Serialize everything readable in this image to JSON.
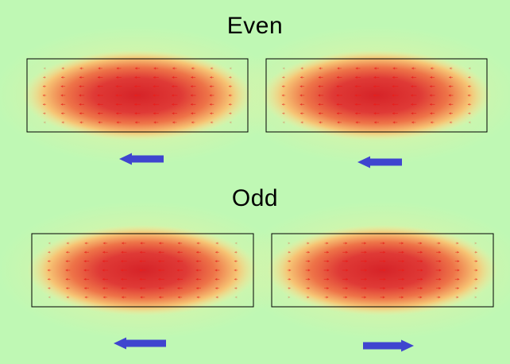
{
  "labels": {
    "even": "Even",
    "odd": "Odd"
  },
  "colors": {
    "background": "#bff8b4",
    "field_core": "#d8282c",
    "field_mid": "#f07a46",
    "field_edge": "#f4e08a",
    "field_arrow": "#e8201c",
    "power_arrow": "#3f45cf",
    "outline": "#000000"
  },
  "modes": [
    {
      "name": "even",
      "waveguides": [
        {
          "field_direction": "left",
          "power_flow": "left"
        },
        {
          "field_direction": "left",
          "power_flow": "left"
        }
      ]
    },
    {
      "name": "odd",
      "waveguides": [
        {
          "field_direction": "left",
          "power_flow": "left"
        },
        {
          "field_direction": "right",
          "power_flow": "right"
        }
      ]
    }
  ]
}
